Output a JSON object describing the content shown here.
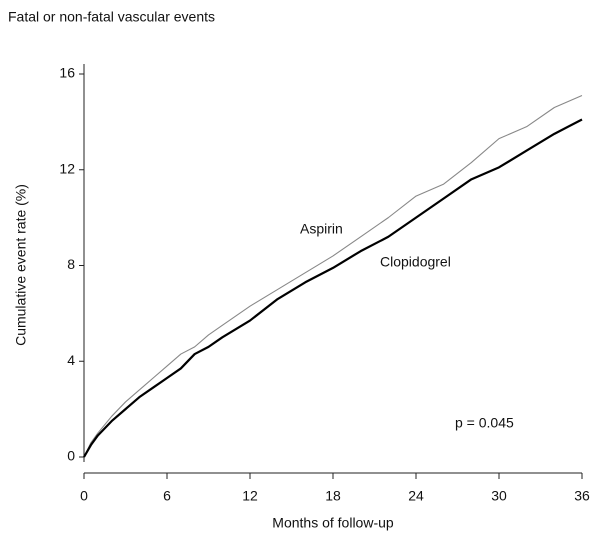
{
  "chart_data": {
    "type": "line",
    "title": "Fatal or non-fatal vascular events",
    "x_label": "Months of follow-up",
    "y_label": "Cumulative event rate (%)",
    "annotations": [
      "p = 0.045"
    ],
    "x": [
      0,
      0.5,
      1,
      2,
      3,
      4,
      5,
      6,
      7,
      8,
      9,
      10,
      12,
      14,
      16,
      18,
      20,
      22,
      24,
      26,
      28,
      30,
      32,
      34,
      36
    ],
    "series": [
      {
        "name": "Aspirin",
        "color": "#888888",
        "values": [
          0,
          0.6,
          1.0,
          1.7,
          2.3,
          2.8,
          3.3,
          3.8,
          4.3,
          4.6,
          5.1,
          5.5,
          6.3,
          7.0,
          7.7,
          8.4,
          9.2,
          10.0,
          10.9,
          11.4,
          12.3,
          13.3,
          13.8,
          14.6,
          15.1
        ]
      },
      {
        "name": "Clopidogrel",
        "color": "#000000",
        "values": [
          0,
          0.5,
          0.9,
          1.5,
          2.0,
          2.5,
          2.9,
          3.3,
          3.7,
          4.3,
          4.6,
          5.0,
          5.7,
          6.6,
          7.3,
          7.9,
          8.6,
          9.2,
          10.0,
          10.8,
          11.6,
          12.1,
          12.8,
          13.5,
          14.1
        ]
      }
    ],
    "xlim": [
      0,
      36
    ],
    "xticks": [
      0,
      6,
      12,
      18,
      24,
      30,
      36
    ],
    "ylim": [
      0,
      16
    ],
    "yticks": [
      0,
      4,
      8,
      12,
      16
    ],
    "grid": false
  }
}
